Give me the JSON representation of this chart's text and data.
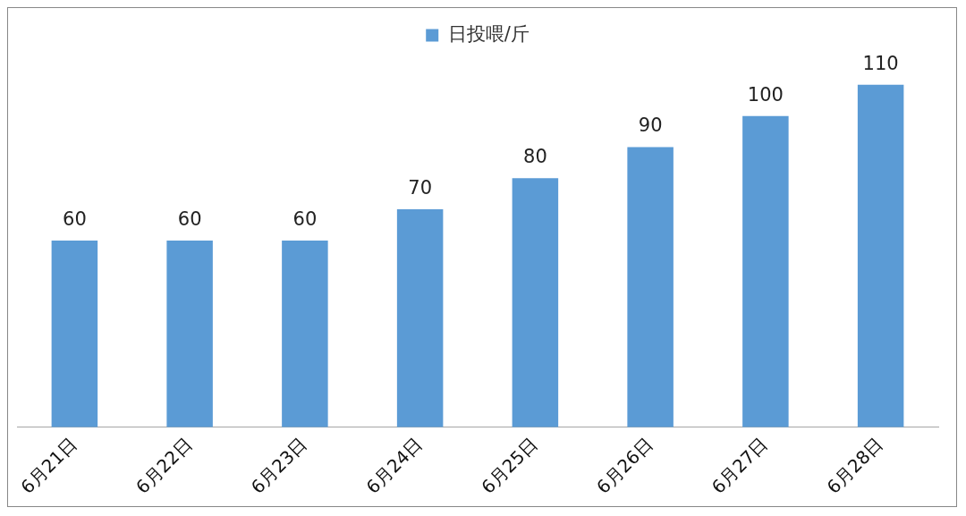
{
  "chart_data": {
    "type": "bar",
    "categories": [
      "6月21日",
      "6月22日",
      "6月23日",
      "6月24日",
      "6月25日",
      "6月26日",
      "6月27日",
      "6月28日"
    ],
    "series": [
      {
        "name": "日投喂/斤",
        "color": "#5b9bd5",
        "values": [
          60,
          60,
          60,
          70,
          80,
          90,
          100,
          110
        ]
      }
    ],
    "tick_labels": "x",
    "data_labels": true,
    "grid": false,
    "legend": "top"
  }
}
